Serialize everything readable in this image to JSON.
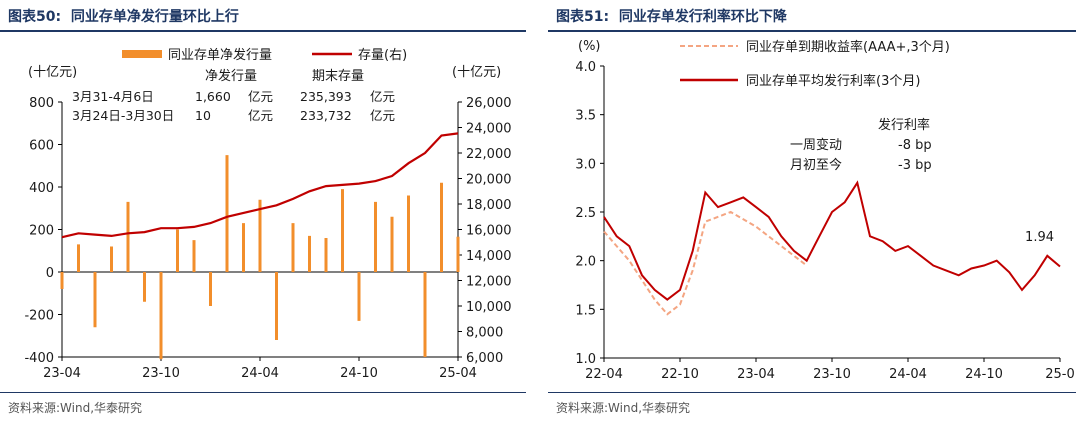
{
  "left": {
    "figure_label": "图表50:",
    "title": "同业存单净发行量环比上行",
    "source": "资料来源:Wind,华泰研究",
    "colors": {
      "bar": "#f28e2b",
      "line": "#c00000"
    },
    "table": {
      "col_net": "净发行量",
      "col_end": "期末存量",
      "rows": [
        {
          "period": "3月31-4月6日",
          "net": "1,660",
          "net_unit": "亿元",
          "end": "235,393",
          "end_unit": "亿元"
        },
        {
          "period": "3月24日-3月30日",
          "net": "10",
          "net_unit": "亿元",
          "end": "233,732",
          "end_unit": "亿元"
        }
      ]
    }
  },
  "right": {
    "figure_label": "图表51:",
    "title": "同业存单发行利率环比下降",
    "source": "资料来源:Wind,华泰研究",
    "colors": {
      "rate": "#c00000",
      "yield": "#f4a582",
      "callout": "#c00000"
    },
    "annotation": {
      "header": "发行利率",
      "rows": [
        {
          "label": "一周变动",
          "value": "-8 bp"
        },
        {
          "label": "月初至今",
          "value": "-3 bp"
        }
      ]
    },
    "last_label": "1.94"
  },
  "chart_data": [
    {
      "type": "bar",
      "legend": [
        "同业存单净发行量",
        "存量(右)"
      ],
      "y_unit_left": "(十亿元)",
      "y_unit_right": "(十亿元)",
      "ylim_left": [
        -400,
        800
      ],
      "yticks_left": [
        "800",
        "600",
        "400",
        "200",
        "0",
        "-200",
        "-400"
      ],
      "ylim_right": [
        6000,
        26000
      ],
      "yticks_right": [
        "26,000",
        "24,000",
        "22,000",
        "20,000",
        "18,000",
        "16,000",
        "14,000",
        "12,000",
        "10,000",
        "8,000",
        "6,000"
      ],
      "x_ticks": [
        "23-04",
        "23-10",
        "24-04",
        "24-10",
        "25-04"
      ],
      "series": [
        {
          "name": "同业存单净发行量",
          "type": "bar",
          "x": [
            "2023-04",
            "2023-05",
            "2023-06",
            "2023-07",
            "2023-08",
            "2023-09",
            "2023-10",
            "2023-11",
            "2023-12",
            "2024-01",
            "2024-02",
            "2024-03",
            "2024-04",
            "2024-05",
            "2024-06",
            "2024-07",
            "2024-08",
            "2024-09",
            "2024-10",
            "2024-11",
            "2024-12",
            "2025-01",
            "2025-02",
            "2025-03",
            "2025-04"
          ],
          "values": [
            -80,
            130,
            -260,
            120,
            330,
            -140,
            -410,
            200,
            150,
            -160,
            550,
            230,
            340,
            -320,
            230,
            170,
            160,
            390,
            -230,
            330,
            260,
            360,
            -400,
            420,
            166
          ]
        },
        {
          "name": "存量(右)",
          "type": "line",
          "x": [
            "2023-04",
            "2023-05",
            "2023-06",
            "2023-07",
            "2023-08",
            "2023-09",
            "2023-10",
            "2023-11",
            "2023-12",
            "2024-01",
            "2024-02",
            "2024-03",
            "2024-04",
            "2024-05",
            "2024-06",
            "2024-07",
            "2024-08",
            "2024-09",
            "2024-10",
            "2024-11",
            "2024-12",
            "2025-01",
            "2025-02",
            "2025-03",
            "2025-04"
          ],
          "values": [
            15400,
            15700,
            15600,
            15500,
            15700,
            15800,
            16100,
            16100,
            16200,
            16500,
            17000,
            17300,
            17600,
            17900,
            18400,
            19000,
            19400,
            19500,
            19600,
            19800,
            20200,
            21200,
            22000,
            23373,
            23539
          ]
        }
      ]
    },
    {
      "type": "line",
      "y_unit": "(%)",
      "ylim": [
        1.0,
        4.0
      ],
      "yticks": [
        "4.0",
        "3.5",
        "3.0",
        "2.5",
        "2.0",
        "1.5",
        "1.0"
      ],
      "x_ticks": [
        "22-04",
        "22-10",
        "23-04",
        "23-10",
        "24-04",
        "24-10",
        "25-0"
      ],
      "series": [
        {
          "name": "同业存单到期收益率(AAA+,3个月)",
          "style": "dashed",
          "x": [
            "2022-04",
            "2022-06",
            "2022-08",
            "2022-09",
            "2022-10",
            "2022-11",
            "2022-12",
            "2023-02",
            "2023-04",
            "2023-06",
            "2023-08"
          ],
          "values": [
            2.3,
            2.0,
            1.6,
            1.45,
            1.55,
            1.9,
            2.4,
            2.5,
            2.35,
            2.15,
            1.95
          ]
        },
        {
          "name": "同业存单平均发行利率(3个月)",
          "style": "solid",
          "x": [
            "2022-04",
            "2022-05",
            "2022-06",
            "2022-07",
            "2022-08",
            "2022-09",
            "2022-10",
            "2022-11",
            "2022-12",
            "2023-01",
            "2023-02",
            "2023-03",
            "2023-04",
            "2023-05",
            "2023-06",
            "2023-07",
            "2023-08",
            "2023-09",
            "2023-10",
            "2023-11",
            "2023-12",
            "2024-01",
            "2024-02",
            "2024-03",
            "2024-04",
            "2024-05",
            "2024-06",
            "2024-07",
            "2024-08",
            "2024-09",
            "2024-10",
            "2024-11",
            "2024-12",
            "2025-01",
            "2025-02",
            "2025-03",
            "2025-04"
          ],
          "values": [
            2.45,
            2.25,
            2.15,
            1.85,
            1.7,
            1.6,
            1.7,
            2.1,
            2.7,
            2.55,
            2.6,
            2.65,
            2.55,
            2.45,
            2.25,
            2.1,
            2.0,
            2.25,
            2.5,
            2.6,
            2.8,
            2.25,
            2.2,
            2.1,
            2.15,
            2.05,
            1.95,
            1.9,
            1.85,
            1.92,
            1.95,
            2.0,
            1.88,
            1.7,
            1.85,
            2.05,
            1.94
          ]
        }
      ]
    }
  ]
}
